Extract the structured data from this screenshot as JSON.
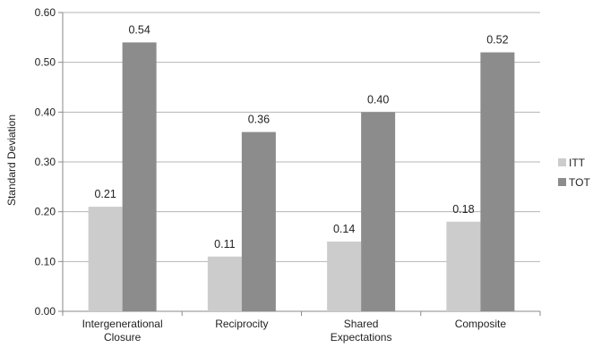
{
  "chart_data": {
    "type": "bar",
    "title": "",
    "xlabel": "",
    "ylabel": "Standard Deviation",
    "ylim": [
      0,
      0.6
    ],
    "yticks": [
      "0.00",
      "0.10",
      "0.20",
      "0.30",
      "0.40",
      "0.50",
      "0.60"
    ],
    "grid": true,
    "legend_position": "right",
    "categories": [
      [
        "Intergenerational",
        "Closure"
      ],
      [
        "Reciprocity"
      ],
      [
        "Shared",
        "Expectations"
      ],
      [
        "Composite"
      ]
    ],
    "series": [
      {
        "name": "ITT",
        "color": "#cccccc",
        "values": [
          0.21,
          0.11,
          0.14,
          0.18
        ],
        "labels": [
          "0.21",
          "0.11",
          "0.14",
          "0.18"
        ]
      },
      {
        "name": "TOT",
        "color": "#8c8c8c",
        "values": [
          0.54,
          0.36,
          0.4,
          0.52
        ],
        "labels": [
          "0.54",
          "0.36",
          "0.40",
          "0.52"
        ]
      }
    ]
  }
}
